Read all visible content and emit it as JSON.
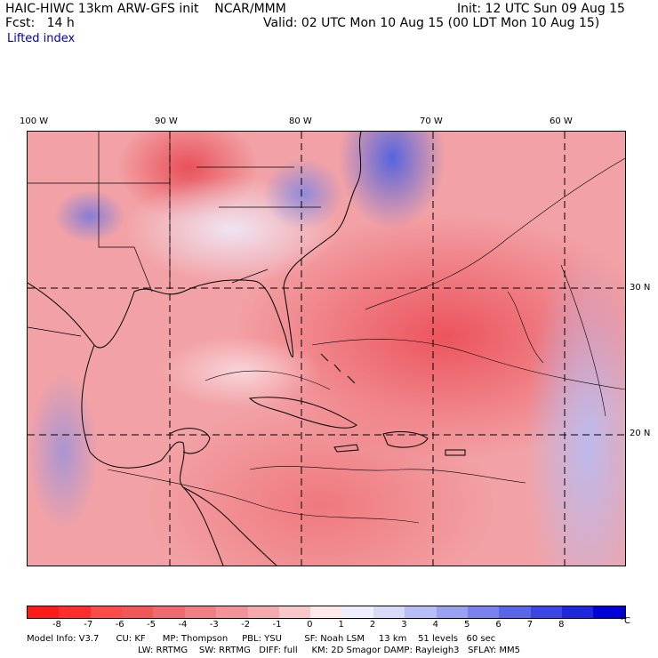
{
  "header": {
    "title_left": "HAIC-HIWC 13km ARW-GFS init    NCAR/MMM",
    "fcst": "Fcst:   14 h",
    "init": "Init: 12 UTC Sun 09 Aug 15",
    "valid": "Valid: 02 UTC Mon 10 Aug 15 (00 LDT Mon 10 Aug 15)",
    "field": "Lifted index"
  },
  "map": {
    "lon_labels": [
      "100 W",
      "90 W",
      "80 W",
      "70 W",
      "60 W"
    ],
    "lat_labels": [
      "30 N",
      "20 N"
    ]
  },
  "colorbar": {
    "labels": [
      "-8",
      "-7",
      "-6",
      "-5",
      "-4",
      "-3",
      "-2",
      "-1",
      "0",
      "1",
      "2",
      "3",
      "4",
      "5",
      "6",
      "7",
      "8"
    ],
    "unit": "°C",
    "colors": [
      "#ff1a1a",
      "#ff2d2d",
      "#ff4a4a",
      "#f25757",
      "#ee6a6e",
      "#f07e82",
      "#f29398",
      "#f5aaae",
      "#f8c7ca",
      "#fde9ea",
      "#eeeeff",
      "#d8dbf8",
      "#b8bef5",
      "#9aa1f0",
      "#7a83ec",
      "#5a65e7",
      "#3c46e2",
      "#1d27dc",
      "#0000d8"
    ]
  },
  "footer": {
    "line1": "Model Info: V3.7      CU: KF      MP: Thompson     PBL: YSU        SF: Noah LSM     13 km    51 levels   60 sec",
    "line2": "LW: RRTMG    SW: RRTMG   DIFF: full     KM: 2D Smagor DAMP: Rayleigh3   SFLAY: MM5"
  }
}
